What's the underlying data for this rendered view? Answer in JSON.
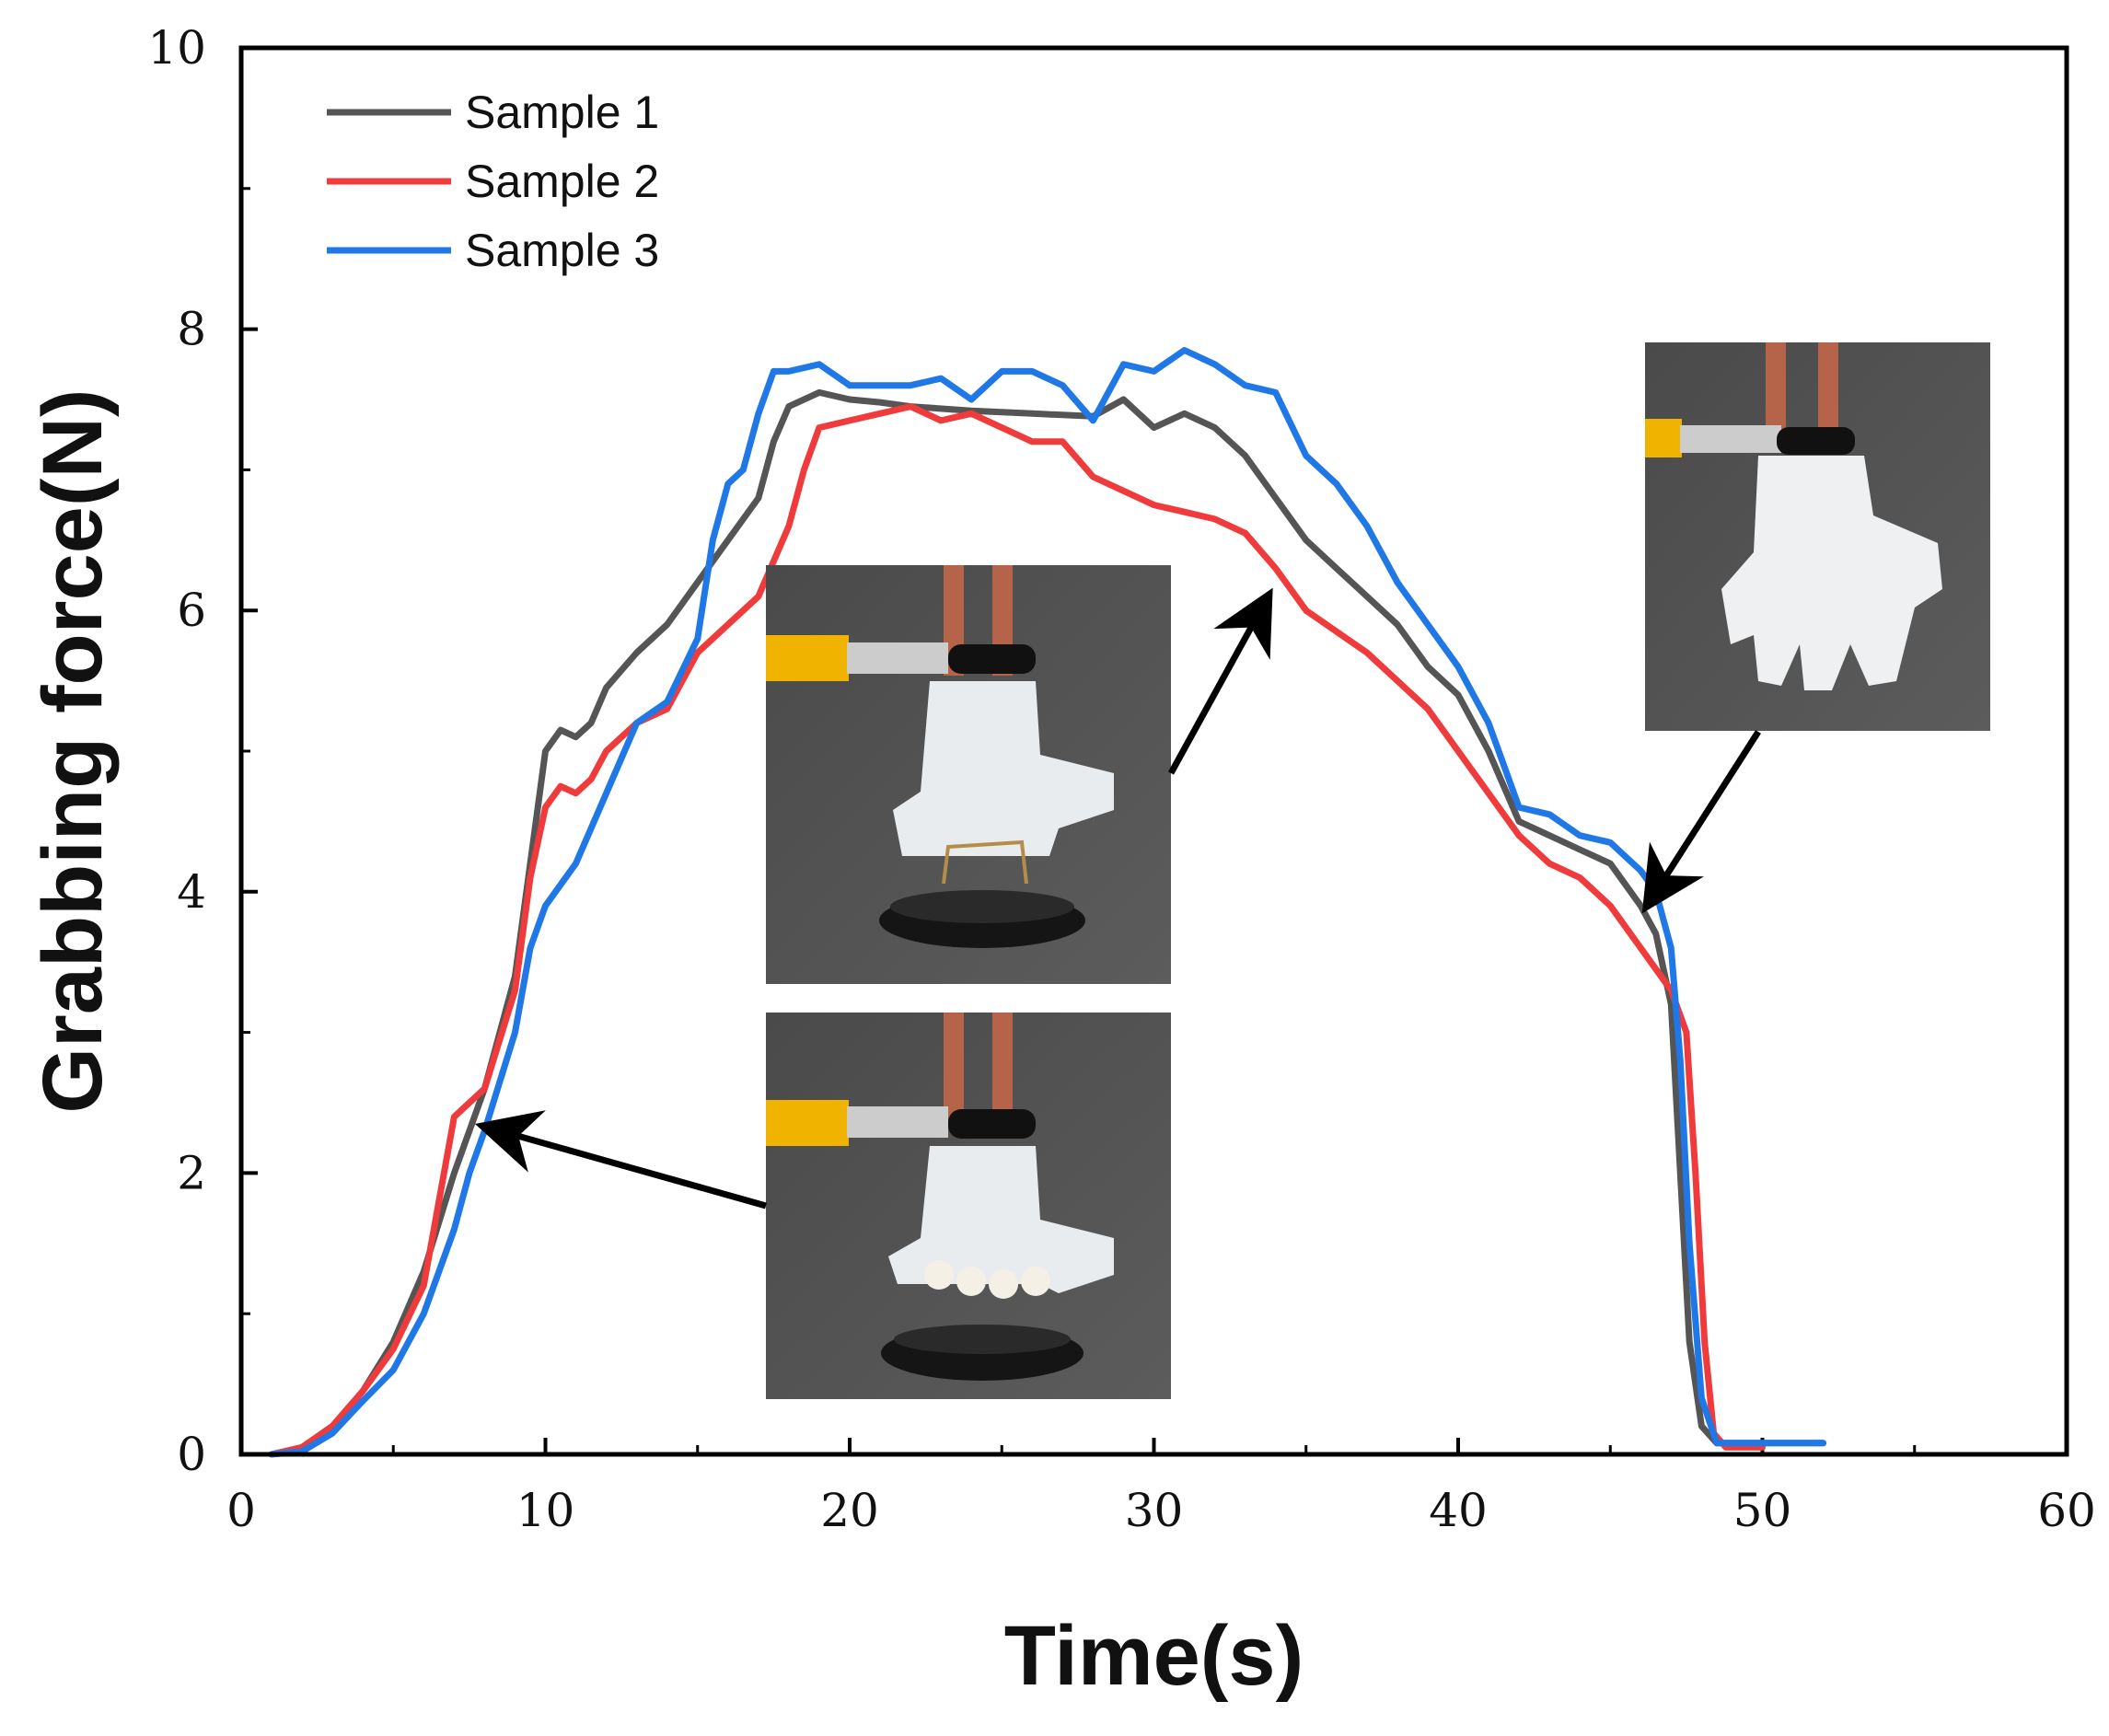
{
  "chart_data": {
    "type": "line",
    "title": "",
    "xlabel": "Time(s)",
    "ylabel": "Grabbing force(N)",
    "xlim": [
      0,
      60
    ],
    "ylim": [
      0,
      10
    ],
    "xticks": [
      0,
      10,
      20,
      30,
      40,
      50,
      60
    ],
    "yticks": [
      0,
      2,
      4,
      6,
      8,
      10
    ],
    "grid": false,
    "legend": "top-left",
    "series": [
      {
        "name": "Sample 1",
        "color": "#555555",
        "points": [
          [
            1.0,
            0.0
          ],
          [
            2.0,
            0.05
          ],
          [
            3.0,
            0.2
          ],
          [
            4.0,
            0.45
          ],
          [
            5.0,
            0.8
          ],
          [
            6.0,
            1.3
          ],
          [
            7.0,
            2.0
          ],
          [
            8.0,
            2.6
          ],
          [
            9.0,
            3.4
          ],
          [
            9.5,
            4.2
          ],
          [
            10.0,
            5.0
          ],
          [
            10.5,
            5.15
          ],
          [
            11.0,
            5.1
          ],
          [
            11.5,
            5.2
          ],
          [
            12.0,
            5.45
          ],
          [
            13.0,
            5.7
          ],
          [
            14.0,
            5.9
          ],
          [
            15.0,
            6.2
          ],
          [
            16.0,
            6.5
          ],
          [
            17.0,
            6.8
          ],
          [
            17.5,
            7.2
          ],
          [
            18.0,
            7.45
          ],
          [
            19.0,
            7.55
          ],
          [
            20.0,
            7.5
          ],
          [
            21.0,
            7.48
          ],
          [
            22.0,
            7.45
          ],
          [
            24.0,
            7.42
          ],
          [
            26.0,
            7.4
          ],
          [
            28.0,
            7.38
          ],
          [
            29.0,
            7.5
          ],
          [
            30.0,
            7.3
          ],
          [
            31.0,
            7.4
          ],
          [
            32.0,
            7.3
          ],
          [
            33.0,
            7.1
          ],
          [
            34.0,
            6.8
          ],
          [
            35.0,
            6.5
          ],
          [
            36.0,
            6.3
          ],
          [
            37.0,
            6.1
          ],
          [
            38.0,
            5.9
          ],
          [
            39.0,
            5.6
          ],
          [
            40.0,
            5.4
          ],
          [
            41.0,
            5.0
          ],
          [
            42.0,
            4.5
          ],
          [
            43.0,
            4.4
          ],
          [
            44.0,
            4.3
          ],
          [
            45.0,
            4.2
          ],
          [
            46.0,
            3.9
          ],
          [
            46.5,
            3.7
          ],
          [
            47.0,
            3.2
          ],
          [
            47.3,
            2.0
          ],
          [
            47.6,
            0.8
          ],
          [
            48.0,
            0.2
          ],
          [
            48.5,
            0.08
          ],
          [
            52.0,
            0.08
          ]
        ]
      },
      {
        "name": "Sample 2",
        "color": "#ef3b3b",
        "points": [
          [
            1.0,
            0.0
          ],
          [
            2.0,
            0.05
          ],
          [
            3.0,
            0.2
          ],
          [
            4.0,
            0.45
          ],
          [
            5.0,
            0.75
          ],
          [
            6.0,
            1.2
          ],
          [
            6.5,
            1.8
          ],
          [
            7.0,
            2.4
          ],
          [
            8.0,
            2.6
          ],
          [
            9.0,
            3.3
          ],
          [
            9.5,
            4.1
          ],
          [
            10.0,
            4.6
          ],
          [
            10.5,
            4.75
          ],
          [
            11.0,
            4.7
          ],
          [
            11.5,
            4.8
          ],
          [
            12.0,
            5.0
          ],
          [
            13.0,
            5.2
          ],
          [
            14.0,
            5.3
          ],
          [
            15.0,
            5.7
          ],
          [
            16.0,
            5.9
          ],
          [
            17.0,
            6.1
          ],
          [
            18.0,
            6.6
          ],
          [
            18.5,
            7.0
          ],
          [
            19.0,
            7.3
          ],
          [
            20.0,
            7.35
          ],
          [
            21.0,
            7.4
          ],
          [
            22.0,
            7.45
          ],
          [
            23.0,
            7.35
          ],
          [
            24.0,
            7.4
          ],
          [
            25.0,
            7.3
          ],
          [
            26.0,
            7.2
          ],
          [
            27.0,
            7.2
          ],
          [
            28.0,
            6.95
          ],
          [
            29.0,
            6.85
          ],
          [
            30.0,
            6.75
          ],
          [
            31.0,
            6.7
          ],
          [
            32.0,
            6.65
          ],
          [
            33.0,
            6.55
          ],
          [
            34.0,
            6.3
          ],
          [
            35.0,
            6.0
          ],
          [
            36.0,
            5.85
          ],
          [
            37.0,
            5.7
          ],
          [
            38.0,
            5.5
          ],
          [
            39.0,
            5.3
          ],
          [
            40.0,
            5.0
          ],
          [
            41.0,
            4.7
          ],
          [
            42.0,
            4.4
          ],
          [
            43.0,
            4.2
          ],
          [
            44.0,
            4.1
          ],
          [
            45.0,
            3.9
          ],
          [
            46.0,
            3.6
          ],
          [
            47.0,
            3.3
          ],
          [
            47.5,
            3.0
          ],
          [
            47.8,
            2.0
          ],
          [
            48.1,
            0.8
          ],
          [
            48.4,
            0.15
          ],
          [
            48.8,
            0.05
          ],
          [
            50.0,
            0.05
          ]
        ]
      },
      {
        "name": "Sample 3",
        "color": "#1f78e6",
        "points": [
          [
            1.0,
            0.0
          ],
          [
            2.0,
            0.02
          ],
          [
            3.0,
            0.15
          ],
          [
            4.0,
            0.38
          ],
          [
            5.0,
            0.6
          ],
          [
            6.0,
            1.0
          ],
          [
            7.0,
            1.6
          ],
          [
            7.5,
            2.0
          ],
          [
            8.0,
            2.3
          ],
          [
            9.0,
            3.0
          ],
          [
            9.5,
            3.6
          ],
          [
            10.0,
            3.9
          ],
          [
            11.0,
            4.2
          ],
          [
            12.0,
            4.7
          ],
          [
            13.0,
            5.2
          ],
          [
            14.0,
            5.35
          ],
          [
            15.0,
            5.8
          ],
          [
            15.5,
            6.5
          ],
          [
            16.0,
            6.9
          ],
          [
            16.5,
            7.0
          ],
          [
            17.0,
            7.4
          ],
          [
            17.5,
            7.7
          ],
          [
            18.0,
            7.7
          ],
          [
            19.0,
            7.75
          ],
          [
            20.0,
            7.6
          ],
          [
            21.0,
            7.6
          ],
          [
            22.0,
            7.6
          ],
          [
            23.0,
            7.65
          ],
          [
            24.0,
            7.5
          ],
          [
            25.0,
            7.7
          ],
          [
            26.0,
            7.7
          ],
          [
            27.0,
            7.6
          ],
          [
            28.0,
            7.35
          ],
          [
            29.0,
            7.75
          ],
          [
            30.0,
            7.7
          ],
          [
            31.0,
            7.85
          ],
          [
            32.0,
            7.75
          ],
          [
            33.0,
            7.6
          ],
          [
            34.0,
            7.55
          ],
          [
            35.0,
            7.1
          ],
          [
            36.0,
            6.9
          ],
          [
            37.0,
            6.6
          ],
          [
            38.0,
            6.2
          ],
          [
            39.0,
            5.9
          ],
          [
            40.0,
            5.6
          ],
          [
            41.0,
            5.2
          ],
          [
            42.0,
            4.6
          ],
          [
            43.0,
            4.55
          ],
          [
            44.0,
            4.4
          ],
          [
            45.0,
            4.35
          ],
          [
            46.0,
            4.15
          ],
          [
            46.5,
            4.0
          ],
          [
            47.0,
            3.6
          ],
          [
            47.3,
            2.8
          ],
          [
            47.6,
            1.5
          ],
          [
            48.0,
            0.4
          ],
          [
            48.5,
            0.08
          ],
          [
            52.0,
            0.08
          ]
        ]
      }
    ],
    "insets": [
      {
        "name": "inset-grasp-start",
        "description_hidden": true,
        "arrow_target": [
          8.5,
          2.3
        ]
      },
      {
        "name": "inset-grasp-hold",
        "description_hidden": true,
        "arrow_target": [
          33.5,
          6.0
        ]
      },
      {
        "name": "inset-release",
        "description_hidden": true,
        "arrow_target": [
          46.5,
          4.0
        ]
      }
    ]
  }
}
